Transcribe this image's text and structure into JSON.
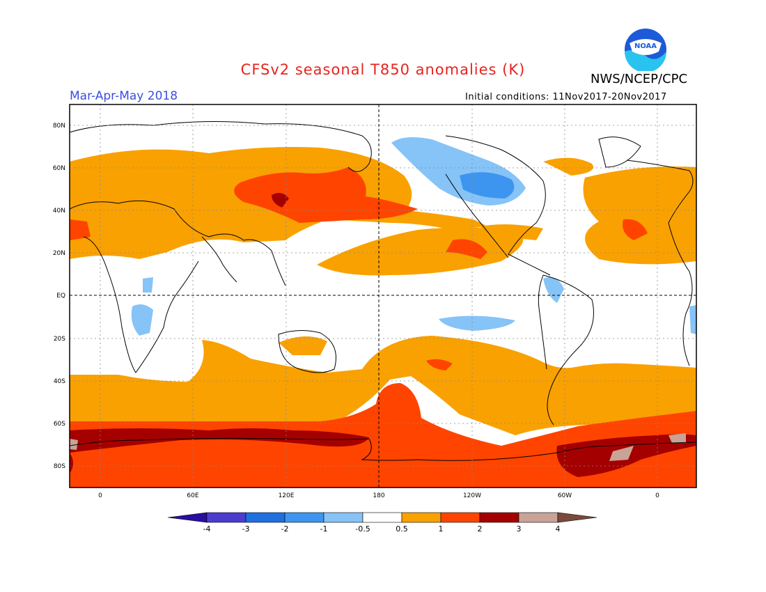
{
  "title": "CFSv2 seasonal T850 anomalies (K)",
  "agency": "NWS/NCEP/CPC",
  "logo_text": "NOAA",
  "season": "Mar-Apr-May 2018",
  "initial_conditions": "Initial conditions: 11Nov2017-20Nov2017",
  "lat_labels": [
    "80N",
    "60N",
    "40N",
    "20N",
    "EQ",
    "20S",
    "40S",
    "60S",
    "80S"
  ],
  "lon_labels": [
    "0",
    "60E",
    "120E",
    "180",
    "120W",
    "60W",
    "0"
  ],
  "colorbar": {
    "ticks": [
      "-4",
      "-3",
      "-2",
      "-1",
      "-0.5",
      "0.5",
      "1",
      "2",
      "3",
      "4"
    ],
    "colors": [
      "#2a0ea0",
      "#4b3cd0",
      "#1f6fe0",
      "#3e95ef",
      "#86c3f7",
      "#ffffff",
      "#f9a100",
      "#ff4400",
      "#a50000",
      "#c9a396",
      "#7a4a3a"
    ]
  },
  "colors": {
    "warm1": "#f9a100",
    "warm2": "#ff4400",
    "warm3": "#a50000",
    "warm4": "#c9a396",
    "cool1": "#86c3f7",
    "cool2": "#3e95ef"
  }
}
